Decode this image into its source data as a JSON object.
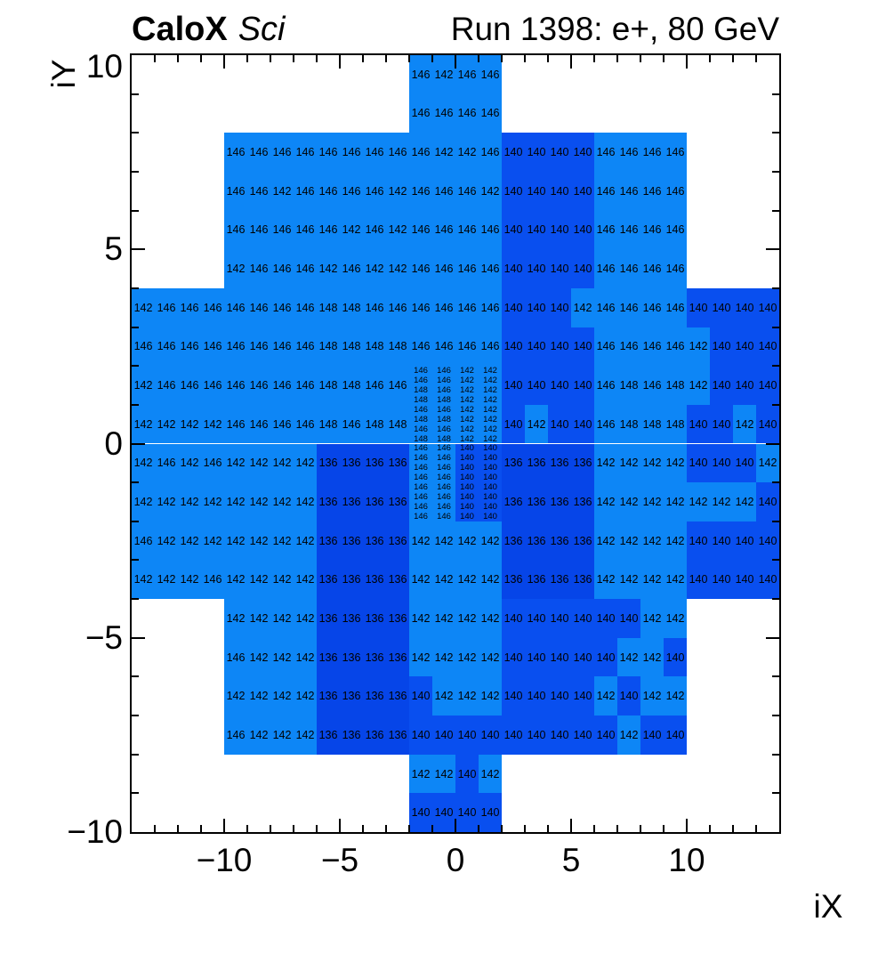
{
  "header": {
    "experiment": "CaloX",
    "detector_tag": "Sci",
    "run_label": "Run 1398: e+, 80 GeV"
  },
  "axes": {
    "x_title": "iX",
    "y_title": "iY",
    "x_range": [
      -14,
      14
    ],
    "y_range": [
      -10,
      10
    ],
    "x_ticks": [
      {
        "v": -10,
        "label": "−10"
      },
      {
        "v": -5,
        "label": "−5"
      },
      {
        "v": 0,
        "label": "0"
      },
      {
        "v": 5,
        "label": "5"
      },
      {
        "v": 10,
        "label": "10"
      }
    ],
    "y_ticks": [
      {
        "v": 10,
        "label": "10"
      },
      {
        "v": 5,
        "label": "5"
      },
      {
        "v": 0,
        "label": "0"
      },
      {
        "v": -5,
        "label": "−5"
      },
      {
        "v": -10,
        "label": "−10"
      }
    ]
  },
  "palette": {
    "136": "#0645e8",
    "140": "#094fef",
    "142": "#0d86f6",
    "146": "#0d86f6",
    "148": "#0d86f6"
  },
  "chart_data": {
    "type": "heatmap",
    "title": "CaloX Sci",
    "subtitle": "Run 1398: e+, 80 GeV",
    "xlabel": "iX",
    "ylabel": "iY",
    "xlim": [
      -14,
      14
    ],
    "ylim": [
      -10,
      10
    ],
    "grid": false,
    "rows": [
      {
        "y": 9,
        "x0": -2,
        "v": [
          146,
          142,
          146,
          146
        ]
      },
      {
        "y": 8,
        "x0": -2,
        "v": [
          146,
          146,
          146,
          146
        ]
      },
      {
        "y": 7,
        "x0": -10,
        "v": [
          146,
          146,
          146,
          146,
          146,
          146,
          146,
          146,
          146,
          142,
          142,
          146,
          140,
          140,
          140,
          140,
          146,
          146,
          146,
          146
        ]
      },
      {
        "y": 6,
        "x0": -10,
        "v": [
          146,
          146,
          142,
          146,
          146,
          146,
          146,
          142,
          146,
          146,
          146,
          142,
          140,
          140,
          140,
          140,
          146,
          146,
          146,
          146
        ]
      },
      {
        "y": 5,
        "x0": -10,
        "v": [
          146,
          146,
          146,
          146,
          146,
          142,
          146,
          142,
          146,
          146,
          146,
          146,
          140,
          140,
          140,
          140,
          146,
          146,
          146,
          146
        ]
      },
      {
        "y": 4,
        "x0": -10,
        "v": [
          142,
          146,
          146,
          146,
          142,
          146,
          142,
          142,
          146,
          146,
          146,
          146,
          140,
          140,
          140,
          140,
          146,
          146,
          146,
          146
        ]
      },
      {
        "y": 3,
        "x0": -14,
        "v": [
          142,
          146,
          146,
          146,
          146,
          146,
          146,
          146,
          148,
          148,
          146,
          146,
          146,
          146,
          146,
          146,
          140,
          140,
          140,
          142,
          146,
          146,
          146,
          146,
          140,
          140,
          140,
          140
        ]
      },
      {
        "y": 2,
        "x0": -14,
        "v": [
          146,
          146,
          146,
          146,
          146,
          146,
          146,
          146,
          148,
          148,
          148,
          148,
          146,
          146,
          146,
          146,
          140,
          140,
          140,
          140,
          146,
          146,
          146,
          146,
          142,
          140,
          140,
          140
        ]
      },
      {
        "y": 1,
        "x0": -14,
        "v": [
          142,
          146,
          146,
          146,
          146,
          146,
          146,
          146,
          148,
          148,
          146,
          146
        ]
      },
      {
        "y": 1,
        "x0": 2,
        "v": [
          140,
          140,
          140,
          140,
          146,
          148,
          146,
          148,
          142,
          140,
          140,
          140
        ]
      },
      {
        "y": 0,
        "x0": -14,
        "v": [
          142,
          142,
          142,
          142,
          146,
          146,
          146,
          146,
          148,
          146,
          148,
          148
        ]
      },
      {
        "y": 0,
        "x0": 2,
        "v": [
          140,
          142,
          140,
          140,
          146,
          148,
          148,
          148,
          140,
          140,
          142,
          140
        ]
      },
      {
        "y": -1,
        "x0": -14,
        "v": [
          142,
          146,
          142,
          146,
          142,
          142,
          142,
          142,
          136,
          136,
          136,
          136
        ]
      },
      {
        "y": -1,
        "x0": 2,
        "v": [
          136,
          136,
          136,
          136,
          142,
          142,
          142,
          142,
          140,
          140,
          140,
          142
        ]
      },
      {
        "y": -2,
        "x0": -14,
        "v": [
          142,
          142,
          142,
          142,
          142,
          142,
          142,
          142,
          136,
          136,
          136,
          136
        ]
      },
      {
        "y": -2,
        "x0": 2,
        "v": [
          136,
          136,
          136,
          136,
          142,
          142,
          142,
          142,
          142,
          142,
          142,
          140
        ]
      },
      {
        "y": -3,
        "x0": -14,
        "v": [
          146,
          142,
          142,
          142,
          142,
          142,
          142,
          142,
          136,
          136,
          136,
          136,
          142,
          142,
          142,
          142,
          136,
          136,
          136,
          136,
          142,
          142,
          142,
          142,
          140,
          140,
          140,
          140
        ]
      },
      {
        "y": -4,
        "x0": -14,
        "v": [
          142,
          142,
          142,
          146,
          142,
          142,
          142,
          142,
          136,
          136,
          136,
          136,
          142,
          142,
          142,
          142,
          136,
          136,
          136,
          136,
          142,
          142,
          142,
          142,
          140,
          140,
          140,
          140
        ]
      },
      {
        "y": -5,
        "x0": -10,
        "v": [
          142,
          142,
          142,
          142,
          136,
          136,
          136,
          136,
          142,
          142,
          142,
          142,
          140,
          140,
          140,
          140,
          140,
          140,
          142,
          142
        ]
      },
      {
        "y": -6,
        "x0": -10,
        "v": [
          146,
          142,
          142,
          142,
          136,
          136,
          136,
          136,
          142,
          142,
          142,
          142,
          140,
          140,
          140,
          140,
          140,
          142,
          142,
          140
        ]
      },
      {
        "y": -7,
        "x0": -10,
        "v": [
          142,
          142,
          142,
          142,
          136,
          136,
          136,
          136,
          140,
          142,
          142,
          142,
          140,
          140,
          140,
          140,
          142,
          140,
          142,
          142
        ]
      },
      {
        "y": -8,
        "x0": -10,
        "v": [
          146,
          142,
          142,
          142,
          136,
          136,
          136,
          136,
          140,
          140,
          140,
          140,
          140,
          140,
          140,
          140,
          140,
          142,
          140,
          140
        ]
      },
      {
        "y": -9,
        "x0": -2,
        "v": [
          142,
          142,
          140,
          142
        ]
      },
      {
        "y": -10,
        "x0": -2,
        "v": [
          140,
          140,
          140,
          140
        ]
      }
    ],
    "fine_block": {
      "x0": -2,
      "y_top": 2,
      "cols": 4,
      "cell_w": 1,
      "cell_h": 0.25,
      "rows": [
        [
          146,
          146,
          142,
          142
        ],
        [
          146,
          146,
          142,
          142
        ],
        [
          148,
          146,
          142,
          142
        ],
        [
          148,
          148,
          142,
          142
        ],
        [
          146,
          146,
          142,
          142
        ],
        [
          148,
          148,
          142,
          142
        ],
        [
          146,
          146,
          142,
          142
        ],
        [
          148,
          148,
          142,
          142
        ],
        [
          146,
          146,
          140,
          140
        ],
        [
          146,
          146,
          140,
          140
        ],
        [
          146,
          146,
          140,
          140
        ],
        [
          146,
          146,
          140,
          140
        ],
        [
          146,
          146,
          140,
          140
        ],
        [
          146,
          146,
          140,
          140
        ],
        [
          146,
          146,
          140,
          140
        ],
        [
          146,
          146,
          140,
          140
        ]
      ]
    }
  }
}
